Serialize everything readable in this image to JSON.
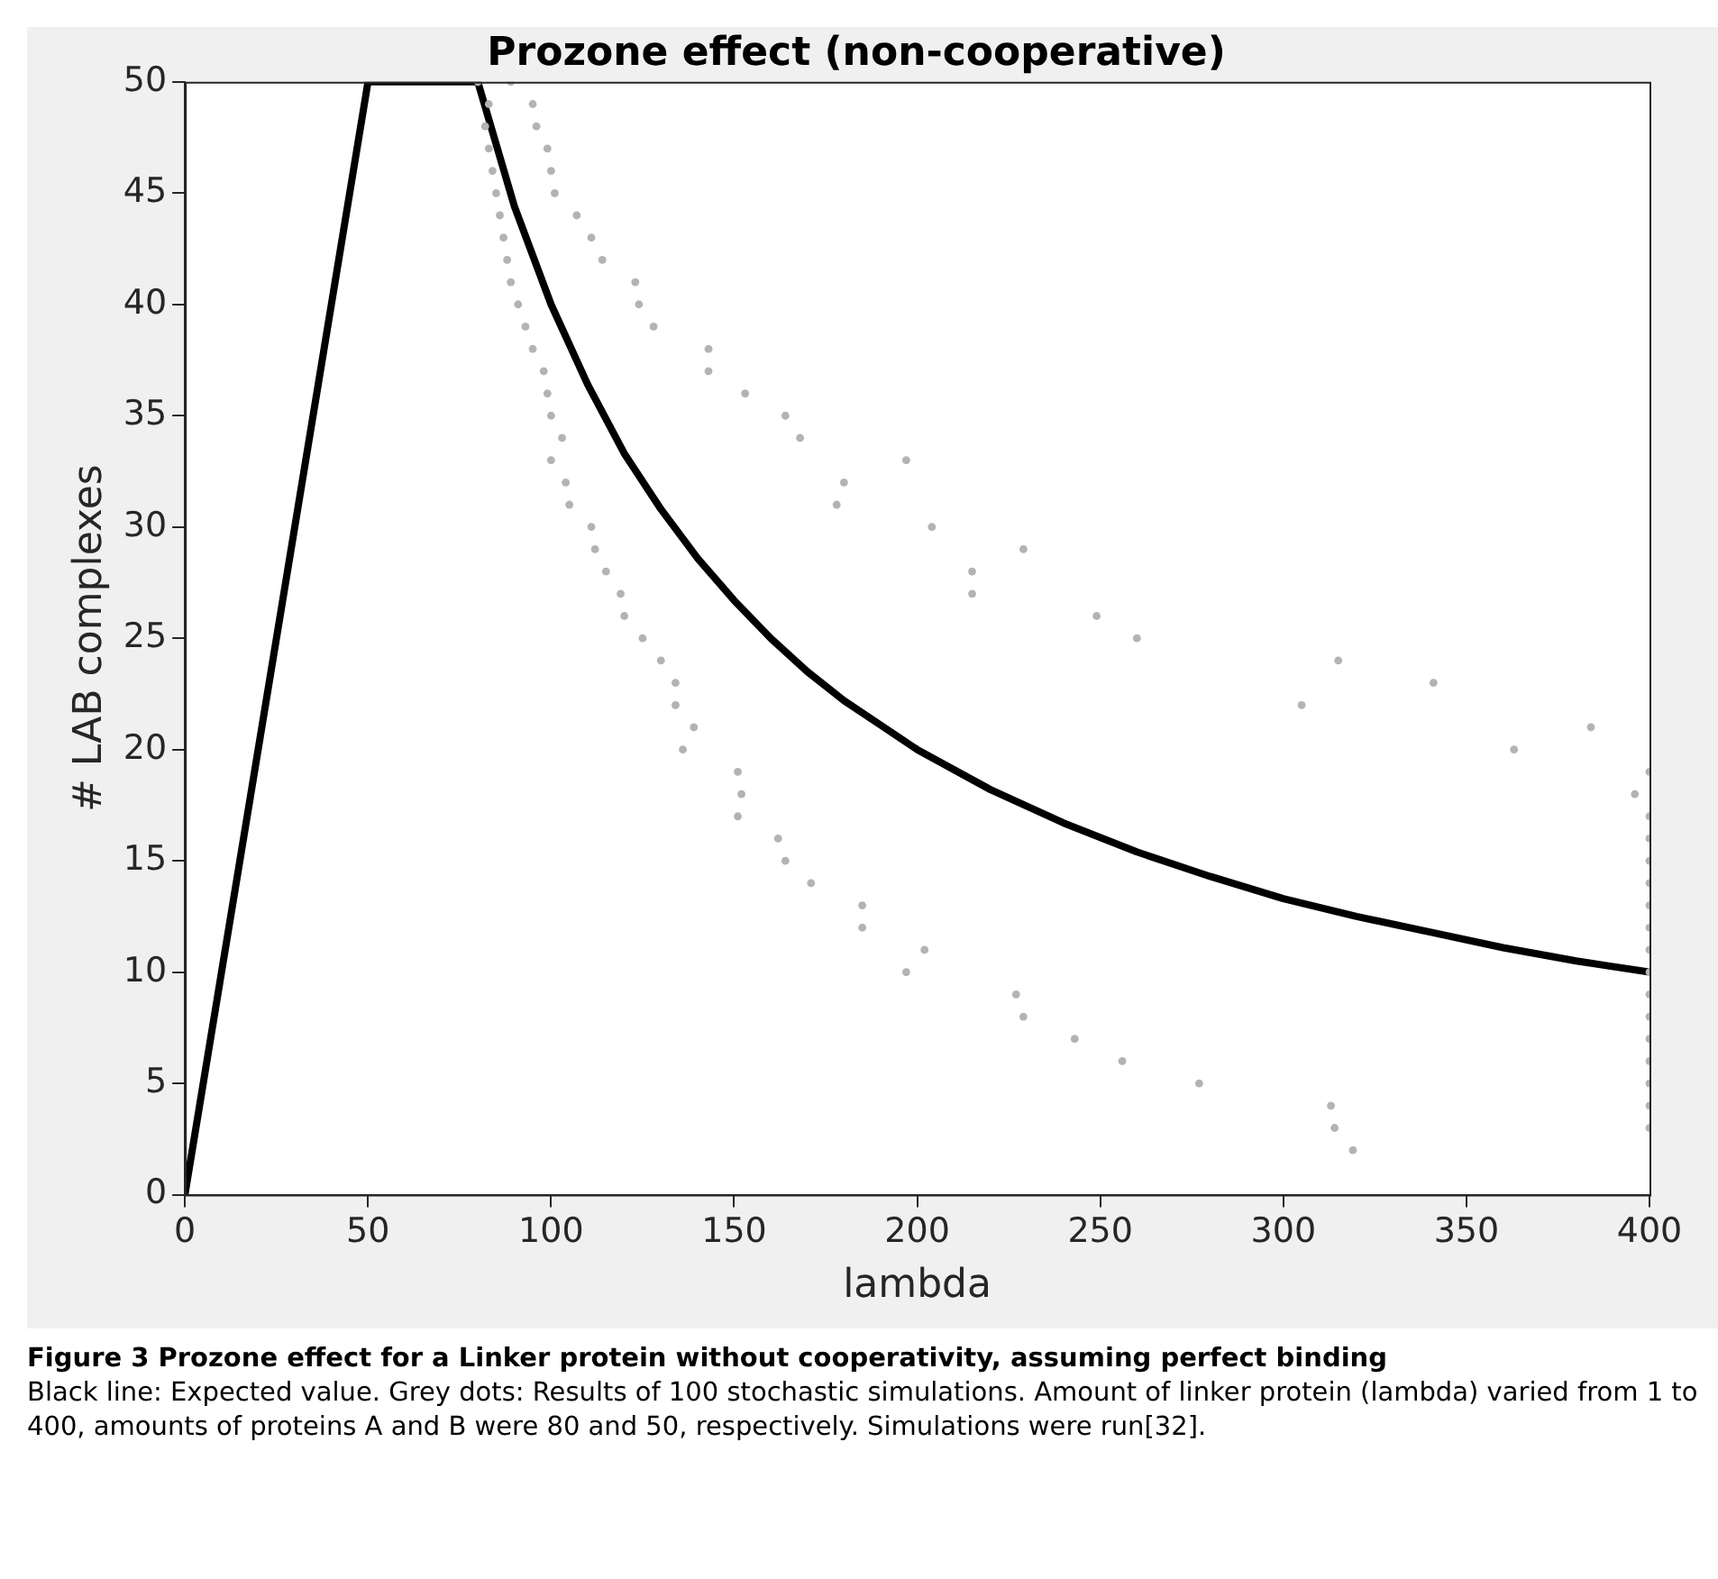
{
  "chart_data": {
    "type": "scatter",
    "title": "Prozone effect (non-cooperative)",
    "xlabel": "lambda",
    "ylabel": "# LAB complexes",
    "xlim": [
      0,
      400
    ],
    "xticks": [
      0,
      50,
      100,
      150,
      200,
      250,
      300,
      350,
      400
    ],
    "ylim": [
      0,
      50
    ],
    "yticks": [
      0,
      5,
      10,
      15,
      20,
      25,
      30,
      35,
      40,
      45,
      50
    ],
    "grid": false,
    "legend": false,
    "series": [
      {
        "type": "scatter",
        "marker": "circle",
        "color": "#b3b3b3",
        "x": [
          80,
          83,
          82,
          83,
          84,
          85,
          86,
          87,
          88,
          89,
          91,
          93,
          95,
          98,
          99,
          100,
          103,
          100,
          104,
          105,
          111,
          112,
          115,
          119,
          120,
          125,
          130,
          134,
          134,
          139,
          136,
          151,
          152,
          151,
          162,
          164,
          171,
          185,
          185,
          202,
          197,
          227,
          229,
          243,
          256,
          277,
          313,
          314,
          319,
          89,
          95,
          96,
          99,
          100,
          101,
          107,
          111,
          114,
          123,
          124,
          128,
          143,
          143,
          153,
          164,
          168,
          197,
          180,
          178,
          204,
          229,
          215,
          215,
          249,
          260,
          315,
          341,
          305,
          384,
          363,
          400,
          396,
          400,
          400,
          400,
          400,
          400,
          400,
          400,
          400,
          400,
          400,
          400,
          400,
          400,
          400,
          400
        ],
        "values": [
          50,
          49,
          48,
          47,
          46,
          45,
          44,
          43,
          42,
          41,
          40,
          39,
          38,
          37,
          36,
          35,
          34,
          33,
          32,
          31,
          30,
          29,
          28,
          27,
          26,
          25,
          24,
          23,
          22,
          21,
          20,
          19,
          18,
          17,
          16,
          15,
          14,
          13,
          12,
          11,
          10,
          9,
          8,
          7,
          6,
          5,
          4,
          3,
          2,
          50,
          49,
          48,
          47,
          46,
          45,
          44,
          43,
          42,
          41,
          40,
          39,
          38,
          37,
          36,
          35,
          34,
          33,
          32,
          31,
          30,
          29,
          28,
          27,
          26,
          25,
          24,
          23,
          22,
          21,
          20,
          19,
          18,
          17,
          16,
          15,
          14,
          13,
          12,
          11,
          10,
          9,
          8,
          7,
          6,
          5,
          4,
          3
        ]
      },
      {
        "type": "line",
        "marker": "none",
        "line_style": "solid",
        "color": "#000000",
        "x": [
          0,
          50,
          80,
          90,
          100,
          110,
          120,
          130,
          140,
          150,
          160,
          170,
          180,
          190,
          200,
          220,
          240,
          260,
          280,
          300,
          320,
          340,
          360,
          380,
          400
        ],
        "values": [
          0,
          50,
          50,
          44.4,
          40,
          36.4,
          33.3,
          30.8,
          28.6,
          26.7,
          25,
          23.5,
          22.2,
          21.1,
          20,
          18.2,
          16.7,
          15.4,
          14.3,
          13.3,
          12.5,
          11.8,
          11.1,
          10.5,
          10
        ]
      }
    ],
    "annotations": [
      "Figure 3 Prozone effect for a Linker protein without cooperativity, assuming perfect binding",
      "Black line: Expected value. Grey dots: Results of 100 stochastic simulations. Amount of linker protein (lambda) varied from 1 to 400, amounts of proteins A and B were 80 and 50, respectively. Simulations were run[32]."
    ]
  }
}
